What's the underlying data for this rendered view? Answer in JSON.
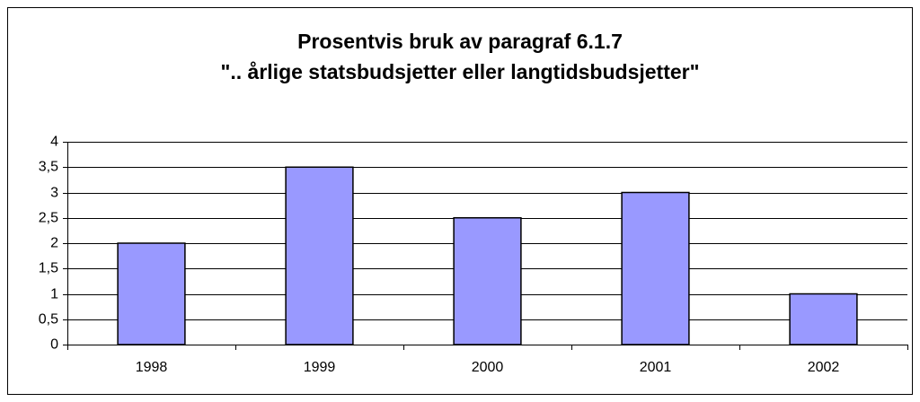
{
  "chart_data": {
    "type": "bar",
    "title": "Prosentvis bruk av paragraf 6.1.7",
    "subtitle": "\".. årlige statsbudsjetter eller langtidsbudsjetter\"",
    "categories": [
      "1998",
      "1999",
      "2000",
      "2001",
      "2002"
    ],
    "values": [
      2,
      3.5,
      2.5,
      3,
      1
    ],
    "color": "#9999ff",
    "ylim": [
      0,
      4
    ],
    "yticks": [
      0,
      {
        "value": 0.5,
        "label": "0,5"
      },
      1,
      {
        "value": 1.5,
        "label": "1,5"
      },
      2,
      {
        "value": 2.5,
        "label": "2,5"
      },
      3,
      {
        "value": 3.5,
        "label": "3,5"
      },
      4
    ],
    "grid": true
  }
}
